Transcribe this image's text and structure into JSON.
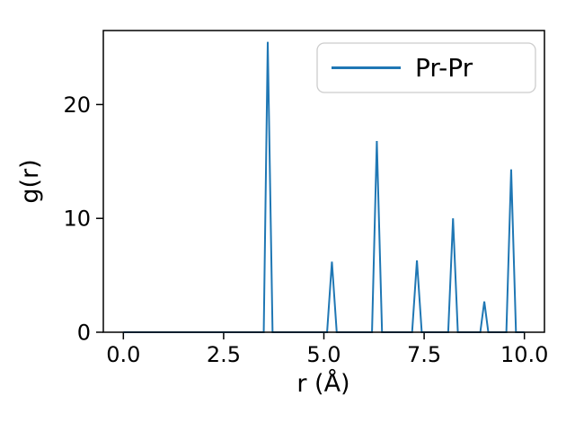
{
  "chart_data": {
    "type": "line",
    "title": "",
    "xlabel": "r (Å)",
    "ylabel": "g(r)",
    "xlim": [
      -0.5,
      10.5
    ],
    "ylim": [
      0,
      26.5
    ],
    "xticks": [
      0.0,
      2.5,
      5.0,
      7.5,
      10.0
    ],
    "xtick_labels": [
      "0.0",
      "2.5",
      "5.0",
      "7.5",
      "10.0"
    ],
    "yticks": [
      0,
      10,
      20
    ],
    "ytick_labels": [
      "0",
      "10",
      "20"
    ],
    "grid": false,
    "legend_position": "upper right",
    "line_color": "#1f77b4",
    "series": [
      {
        "name": "Pr-Pr",
        "x": [
          0.0,
          3.5,
          3.6,
          3.72,
          5.08,
          5.2,
          5.32,
          6.2,
          6.32,
          6.45,
          7.2,
          7.32,
          7.44,
          8.1,
          8.22,
          8.34,
          8.9,
          9.0,
          9.1,
          9.55,
          9.67,
          9.79,
          10.0
        ],
        "y": [
          0,
          0,
          25.5,
          0,
          0,
          6.2,
          0,
          0,
          16.8,
          0,
          0,
          6.3,
          0,
          0,
          10.0,
          0,
          0,
          2.7,
          0,
          0,
          14.3,
          0,
          0
        ]
      }
    ],
    "peaks": [
      {
        "r": 3.6,
        "g": 25.5
      },
      {
        "r": 5.2,
        "g": 6.2
      },
      {
        "r": 6.3,
        "g": 16.8
      },
      {
        "r": 7.3,
        "g": 6.3
      },
      {
        "r": 8.2,
        "g": 10.0
      },
      {
        "r": 9.0,
        "g": 2.7
      },
      {
        "r": 9.7,
        "g": 14.3
      }
    ]
  }
}
